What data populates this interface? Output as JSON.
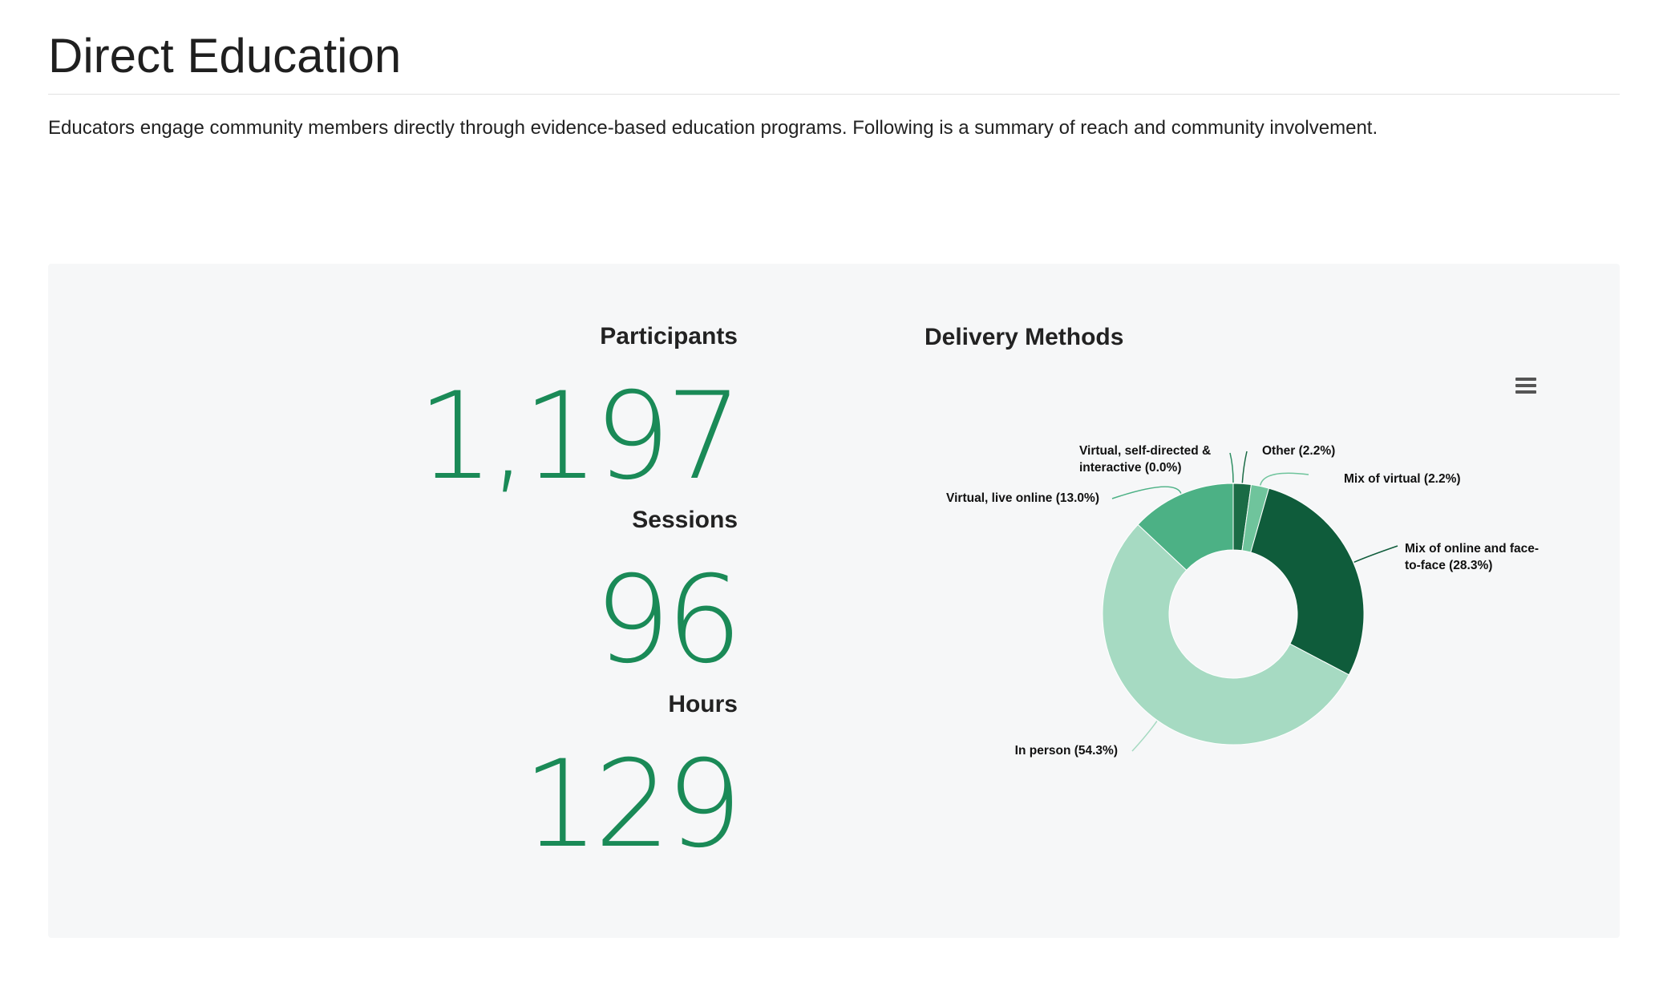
{
  "page": {
    "title": "Direct Education",
    "intro": "Educators engage community members directly through evidence-based education programs. Following is a summary of reach and community involvement."
  },
  "stats": {
    "participants": {
      "label": "Participants",
      "value": "1,197"
    },
    "sessions": {
      "label": "Sessions",
      "value": "96"
    },
    "hours": {
      "label": "Hours",
      "value": "129"
    }
  },
  "chart_menu_icon": "hamburger-menu-icon",
  "chart_data": {
    "type": "pie",
    "variant": "donut",
    "title": "Delivery Methods",
    "slices": [
      {
        "label": "Other (2.2%)",
        "value": 2.2,
        "color": "#1a6b45"
      },
      {
        "label": "Mix of virtual (2.2%)",
        "value": 2.2,
        "color": "#6fc49c"
      },
      {
        "label": "Mix of online and face-to-face (28.3%)",
        "value": 28.3,
        "color": "#0f5c3b"
      },
      {
        "label": "In person (54.3%)",
        "value": 54.3,
        "color": "#a6dac2"
      },
      {
        "label": "Virtual, live online (13.0%)",
        "value": 13.0,
        "color": "#4cb185"
      },
      {
        "label": "Virtual, self-directed & interactive (0.0%)",
        "value": 0.0,
        "color": "#2e8f63"
      }
    ]
  }
}
